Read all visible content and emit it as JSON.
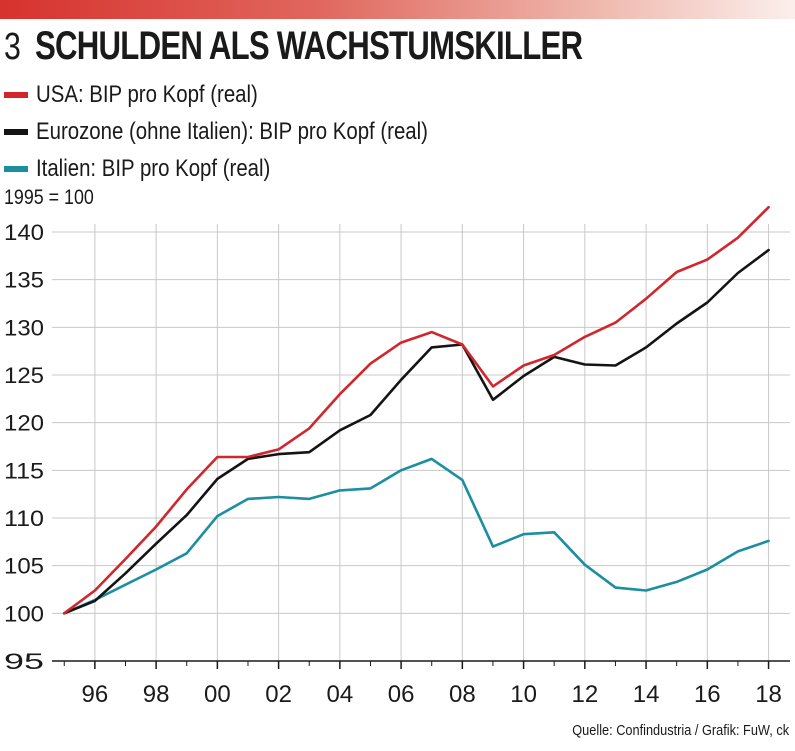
{
  "header": {
    "number": "3",
    "title": "SCHULDEN ALS WACHSTUMSKILLER"
  },
  "unit_label": "1995 = 100",
  "source": "Quelle: Confindustria / Grafik: FuW, ck",
  "chart_data": {
    "type": "line",
    "title": "SCHULDEN ALS WACHSTUMSKILLER",
    "ylabel": "1995 = 100",
    "xlabel": "",
    "ylim": [
      95,
      140
    ],
    "yticks": [
      95,
      100,
      105,
      110,
      115,
      120,
      125,
      130,
      135,
      140
    ],
    "x": [
      1995,
      1996,
      1997,
      1998,
      1999,
      2000,
      2001,
      2002,
      2003,
      2004,
      2005,
      2006,
      2007,
      2008,
      2009,
      2010,
      2011,
      2012,
      2013,
      2014,
      2015,
      2016,
      2017,
      2018
    ],
    "xticks": [
      1996,
      1998,
      2000,
      2002,
      2004,
      2006,
      2008,
      2010,
      2012,
      2014,
      2016,
      2018
    ],
    "xtick_labels": [
      "96",
      "98",
      "00",
      "02",
      "04",
      "06",
      "08",
      "10",
      "12",
      "14",
      "16",
      "18"
    ],
    "series": [
      {
        "name": "USA: BIP pro Kopf (real)",
        "color": "#d0262c",
        "values": [
          100.0,
          102.4,
          105.7,
          109.1,
          113.0,
          116.4,
          116.4,
          117.2,
          119.4,
          123.0,
          126.2,
          128.4,
          129.5,
          128.2,
          123.8,
          126.0,
          127.1,
          129.0,
          130.5,
          133.0,
          135.8,
          137.1,
          139.4,
          142.6
        ]
      },
      {
        "name": "Eurozone (ohne Italien): BIP pro Kopf (real)",
        "color": "#141414",
        "values": [
          100.0,
          101.3,
          104.2,
          107.3,
          110.3,
          114.1,
          116.2,
          116.7,
          116.9,
          119.2,
          120.8,
          124.5,
          127.9,
          128.2,
          122.4,
          124.9,
          126.9,
          126.1,
          126.0,
          127.9,
          130.4,
          132.6,
          135.7,
          138.1
        ]
      },
      {
        "name": "Italien: BIP pro Kopf (real)",
        "color": "#1b8fa0",
        "values": [
          100.0,
          101.4,
          103.0,
          104.6,
          106.3,
          110.2,
          112.0,
          112.2,
          112.0,
          112.9,
          113.1,
          115.0,
          116.2,
          114.0,
          107.0,
          108.3,
          108.5,
          105.1,
          102.7,
          102.4,
          103.3,
          104.6,
          106.5,
          107.6
        ]
      }
    ]
  }
}
